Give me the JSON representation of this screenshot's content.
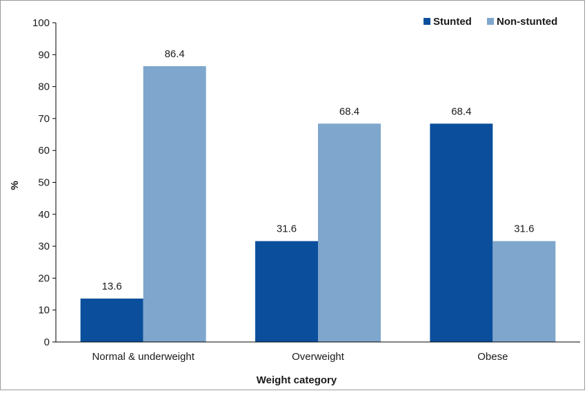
{
  "chart_data": {
    "type": "bar",
    "categories": [
      "Normal & underweight",
      "Overweight",
      "Obese"
    ],
    "series": [
      {
        "name": "Stunted",
        "color": "#0b4f9c",
        "values": [
          13.6,
          31.6,
          68.4
        ]
      },
      {
        "name": "Non-stunted",
        "color": "#7fa6cc",
        "values": [
          86.4,
          68.4,
          31.6
        ]
      }
    ],
    "value_labels": {
      "Stunted": [
        "13.6",
        "31.6",
        "68.4"
      ],
      "Non-stunted": [
        "86.4",
        "68.4",
        "31.6"
      ]
    },
    "yticks": [
      "0",
      "10",
      "20",
      "30",
      "40",
      "50",
      "60",
      "70",
      "80",
      "90",
      "100"
    ],
    "ylim": [
      0,
      100
    ],
    "xlabel": "Weight category",
    "ylabel": "%",
    "legend_position": "top-right",
    "grid": false
  }
}
